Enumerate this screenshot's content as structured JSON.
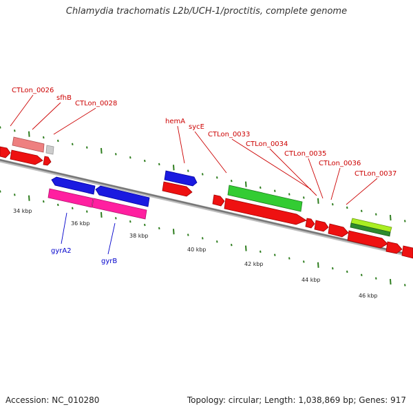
{
  "title": "Chlamydia trachomatis L2b/UCH-1/proctitis, complete genome",
  "footer": {
    "accession": "Accession: NC_010280",
    "topology": "Topology: circular; Length: 1,038,869 bp; Genes: 917"
  },
  "colors": {
    "backbone": "#7a7a7a",
    "tick": "#2e7d1e",
    "cds_red": "#ee1111",
    "cds_blue": "#1a1ae0",
    "cds_pink": "#ff1fa0",
    "cds_green": "#33cc33",
    "cds_lime": "#aaee22",
    "cds_salmon": "#ee8080",
    "cds_grey": "#cccccc",
    "label_red": "#cc0000",
    "label_blue": "#0000cc"
  },
  "scale": {
    "unit": "kbp",
    "labels": [
      "34 kbp",
      "36 kbp",
      "38 kbp",
      "40 kbp",
      "42 kbp",
      "44 kbp",
      "46 kbp"
    ]
  },
  "gene_labels_top": [
    "CTLon_0026",
    "sfhB",
    "CTLon_0028",
    "hemA",
    "sycE",
    "CTLon_0033",
    "CTLon_0034",
    "CTLon_0035",
    "CTLon_0036",
    "CTLon_0037"
  ],
  "gene_labels_bottom": [
    "gyrA2",
    "gyrB"
  ]
}
